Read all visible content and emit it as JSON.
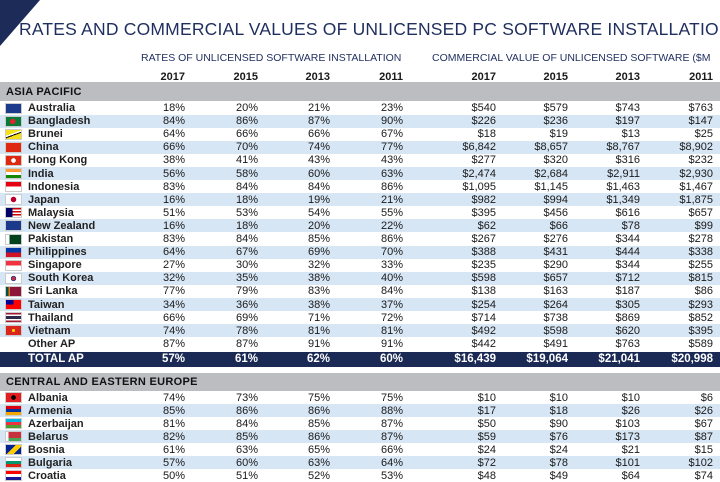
{
  "title": "RATES AND COMMERCIAL VALUES OF UNLICENSED PC SOFTWARE INSTALLATIONS",
  "groups": {
    "rates": "RATES OF UNLICENSED SOFTWARE INSTALLATION",
    "values": "COMMERCIAL VALUE OF UNLICENSED SOFTWARE ($M"
  },
  "years": [
    "2017",
    "2015",
    "2013",
    "2011",
    "2017",
    "2015",
    "2013",
    "2011"
  ],
  "sections": [
    {
      "name": "ASIA PACIFIC",
      "rows": [
        {
          "country": "Australia",
          "flag": "australia-flag-icon",
          "values": [
            "18%",
            "20%",
            "21%",
            "23%",
            "$540",
            "$579",
            "$743",
            "$763"
          ]
        },
        {
          "country": "Bangladesh",
          "flag": "bangladesh-flag-icon",
          "values": [
            "84%",
            "86%",
            "87%",
            "90%",
            "$226",
            "$236",
            "$197",
            "$147"
          ]
        },
        {
          "country": "Brunei",
          "flag": "brunei-flag-icon",
          "values": [
            "64%",
            "66%",
            "66%",
            "67%",
            "$18",
            "$19",
            "$13",
            "$25"
          ]
        },
        {
          "country": "China",
          "flag": "china-flag-icon",
          "values": [
            "66%",
            "70%",
            "74%",
            "77%",
            "$6,842",
            "$8,657",
            "$8,767",
            "$8,902"
          ]
        },
        {
          "country": "Hong Kong",
          "flag": "hong-kong-flag-icon",
          "values": [
            "38%",
            "41%",
            "43%",
            "43%",
            "$277",
            "$320",
            "$316",
            "$232"
          ]
        },
        {
          "country": "India",
          "flag": "india-flag-icon",
          "values": [
            "56%",
            "58%",
            "60%",
            "63%",
            "$2,474",
            "$2,684",
            "$2,911",
            "$2,930"
          ]
        },
        {
          "country": "Indonesia",
          "flag": "indonesia-flag-icon",
          "values": [
            "83%",
            "84%",
            "84%",
            "86%",
            "$1,095",
            "$1,145",
            "$1,463",
            "$1,467"
          ]
        },
        {
          "country": "Japan",
          "flag": "japan-flag-icon",
          "values": [
            "16%",
            "18%",
            "19%",
            "21%",
            "$982",
            "$994",
            "$1,349",
            "$1,875"
          ]
        },
        {
          "country": "Malaysia",
          "flag": "malaysia-flag-icon",
          "values": [
            "51%",
            "53%",
            "54%",
            "55%",
            "$395",
            "$456",
            "$616",
            "$657"
          ]
        },
        {
          "country": "New Zealand",
          "flag": "new-zealand-flag-icon",
          "values": [
            "16%",
            "18%",
            "20%",
            "22%",
            "$62",
            "$66",
            "$78",
            "$99"
          ]
        },
        {
          "country": "Pakistan",
          "flag": "pakistan-flag-icon",
          "values": [
            "83%",
            "84%",
            "85%",
            "86%",
            "$267",
            "$276",
            "$344",
            "$278"
          ]
        },
        {
          "country": "Philippines",
          "flag": "philippines-flag-icon",
          "values": [
            "64%",
            "67%",
            "69%",
            "70%",
            "$388",
            "$431",
            "$444",
            "$338"
          ]
        },
        {
          "country": "Singapore",
          "flag": "singapore-flag-icon",
          "values": [
            "27%",
            "30%",
            "32%",
            "33%",
            "$235",
            "$290",
            "$344",
            "$255"
          ]
        },
        {
          "country": "South Korea",
          "flag": "south-korea-flag-icon",
          "values": [
            "32%",
            "35%",
            "38%",
            "40%",
            "$598",
            "$657",
            "$712",
            "$815"
          ]
        },
        {
          "country": "Sri Lanka",
          "flag": "sri-lanka-flag-icon",
          "values": [
            "77%",
            "79%",
            "83%",
            "84%",
            "$138",
            "$163",
            "$187",
            "$86"
          ]
        },
        {
          "country": "Taiwan",
          "flag": "taiwan-flag-icon",
          "values": [
            "34%",
            "36%",
            "38%",
            "37%",
            "$254",
            "$264",
            "$305",
            "$293"
          ]
        },
        {
          "country": "Thailand",
          "flag": "thailand-flag-icon",
          "values": [
            "66%",
            "69%",
            "71%",
            "72%",
            "$714",
            "$738",
            "$869",
            "$852"
          ]
        },
        {
          "country": "Vietnam",
          "flag": "vietnam-flag-icon",
          "values": [
            "74%",
            "78%",
            "81%",
            "81%",
            "$492",
            "$598",
            "$620",
            "$395"
          ]
        },
        {
          "country": "Other AP",
          "flag": "",
          "values": [
            "87%",
            "87%",
            "91%",
            "91%",
            "$442",
            "$491",
            "$763",
            "$589"
          ]
        }
      ],
      "total": {
        "label": "TOTAL AP",
        "values": [
          "57%",
          "61%",
          "62%",
          "60%",
          "$16,439",
          "$19,064",
          "$21,041",
          "$20,998"
        ]
      }
    },
    {
      "name": "CENTRAL AND EASTERN EUROPE",
      "rows": [
        {
          "country": "Albania",
          "flag": "albania-flag-icon",
          "values": [
            "74%",
            "73%",
            "75%",
            "75%",
            "$10",
            "$10",
            "$10",
            "$6"
          ]
        },
        {
          "country": "Armenia",
          "flag": "armenia-flag-icon",
          "values": [
            "85%",
            "86%",
            "86%",
            "88%",
            "$17",
            "$18",
            "$26",
            "$26"
          ]
        },
        {
          "country": "Azerbaijan",
          "flag": "azerbaijan-flag-icon",
          "values": [
            "81%",
            "84%",
            "85%",
            "87%",
            "$50",
            "$90",
            "$103",
            "$67"
          ]
        },
        {
          "country": "Belarus",
          "flag": "belarus-flag-icon",
          "values": [
            "82%",
            "85%",
            "86%",
            "87%",
            "$59",
            "$76",
            "$173",
            "$87"
          ]
        },
        {
          "country": "Bosnia",
          "flag": "bosnia-flag-icon",
          "values": [
            "61%",
            "63%",
            "65%",
            "66%",
            "$24",
            "$24",
            "$21",
            "$15"
          ]
        },
        {
          "country": "Bulgaria",
          "flag": "bulgaria-flag-icon",
          "values": [
            "57%",
            "60%",
            "63%",
            "64%",
            "$72",
            "$78",
            "$101",
            "$102"
          ]
        },
        {
          "country": "Croatia",
          "flag": "croatia-flag-icon",
          "values": [
            "50%",
            "51%",
            "52%",
            "53%",
            "$48",
            "$49",
            "$64",
            "$74"
          ]
        }
      ]
    }
  ],
  "colors": {
    "navy": "#1b2a55",
    "band": "#bcbdc1",
    "alt_row": "#d7e6f5"
  }
}
